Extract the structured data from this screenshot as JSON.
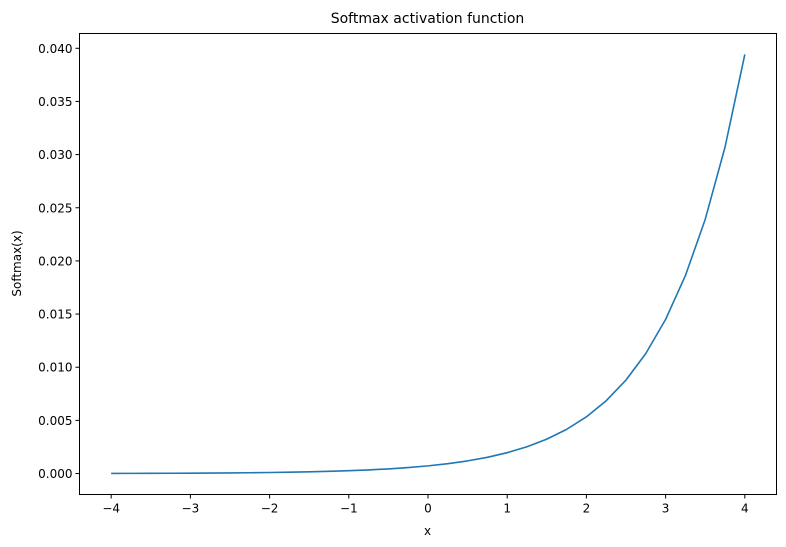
{
  "chart_data": {
    "type": "line",
    "title": "Softmax activation function",
    "xlabel": "x",
    "ylabel": "Softmax(x)",
    "xlim": [
      -4.4,
      4.4
    ],
    "ylim": [
      -0.00197,
      0.04139
    ],
    "xticks": [
      -4,
      -3,
      -2,
      -1,
      0,
      1,
      2,
      3,
      4
    ],
    "xtick_labels": [
      "−4",
      "−3",
      "−2",
      "−1",
      "0",
      "1",
      "2",
      "3",
      "4"
    ],
    "yticks": [
      0,
      0.005,
      0.01,
      0.015,
      0.02,
      0.025,
      0.03,
      0.035,
      0.04
    ],
    "ytick_labels": [
      "0.000",
      "0.005",
      "0.010",
      "0.015",
      "0.020",
      "0.025",
      "0.030",
      "0.035",
      "0.040"
    ],
    "grid": false,
    "series": [
      {
        "color": "#1f77b4",
        "x": [
          -4,
          -3.75,
          -3.5,
          -3.25,
          -3,
          -2.75,
          -2.5,
          -2.25,
          -2,
          -1.75,
          -1.5,
          -1.25,
          -1,
          -0.75,
          -0.5,
          -0.25,
          0,
          0.25,
          0.5,
          0.75,
          1,
          1.25,
          1.5,
          1.75,
          2,
          2.25,
          2.5,
          2.75,
          3,
          3.25,
          3.5,
          3.75,
          4
        ],
        "y": [
          1.3e-05,
          1.7e-05,
          2.2e-05,
          2.8e-05,
          3.6e-05,
          4.6e-05,
          5.9e-05,
          7.6e-05,
          9.8e-05,
          0.000125,
          0.000161,
          0.000207,
          0.000266,
          0.000341,
          0.000438,
          0.000562,
          0.000722,
          0.000927,
          0.00119,
          0.001529,
          0.001963,
          0.00252,
          0.003236,
          0.004155,
          0.005335,
          0.00685,
          0.008796,
          0.011294,
          0.014502,
          0.018621,
          0.02391,
          0.030701,
          0.039421
        ]
      }
    ]
  }
}
